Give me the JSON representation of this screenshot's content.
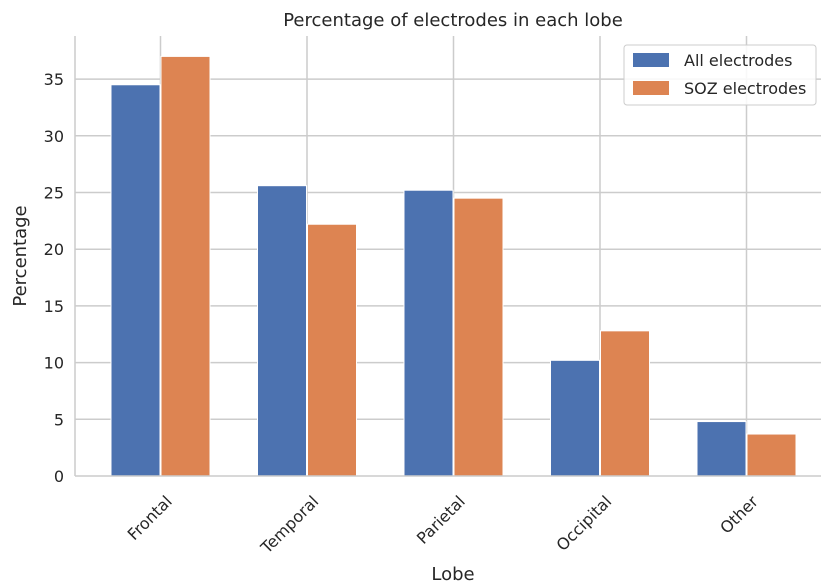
{
  "chart_data": {
    "type": "bar",
    "title": "Percentage of electrodes in each lobe",
    "xlabel": "Lobe",
    "ylabel": "Percentage",
    "categories": [
      "Frontal",
      "Temporal",
      "Parietal",
      "Occipital",
      "Other"
    ],
    "series": [
      {
        "name": "All electrodes",
        "values": [
          34.5,
          25.6,
          25.2,
          10.2,
          4.8
        ],
        "color": "#4c72b0"
      },
      {
        "name": "SOZ electrodes",
        "values": [
          37.0,
          22.2,
          24.5,
          12.8,
          3.7
        ],
        "color": "#dd8452"
      }
    ],
    "yticks": [
      0,
      5,
      10,
      15,
      20,
      25,
      30,
      35
    ],
    "ylim": [
      0,
      38.8
    ],
    "grid": true,
    "legend_position": "top-right"
  }
}
